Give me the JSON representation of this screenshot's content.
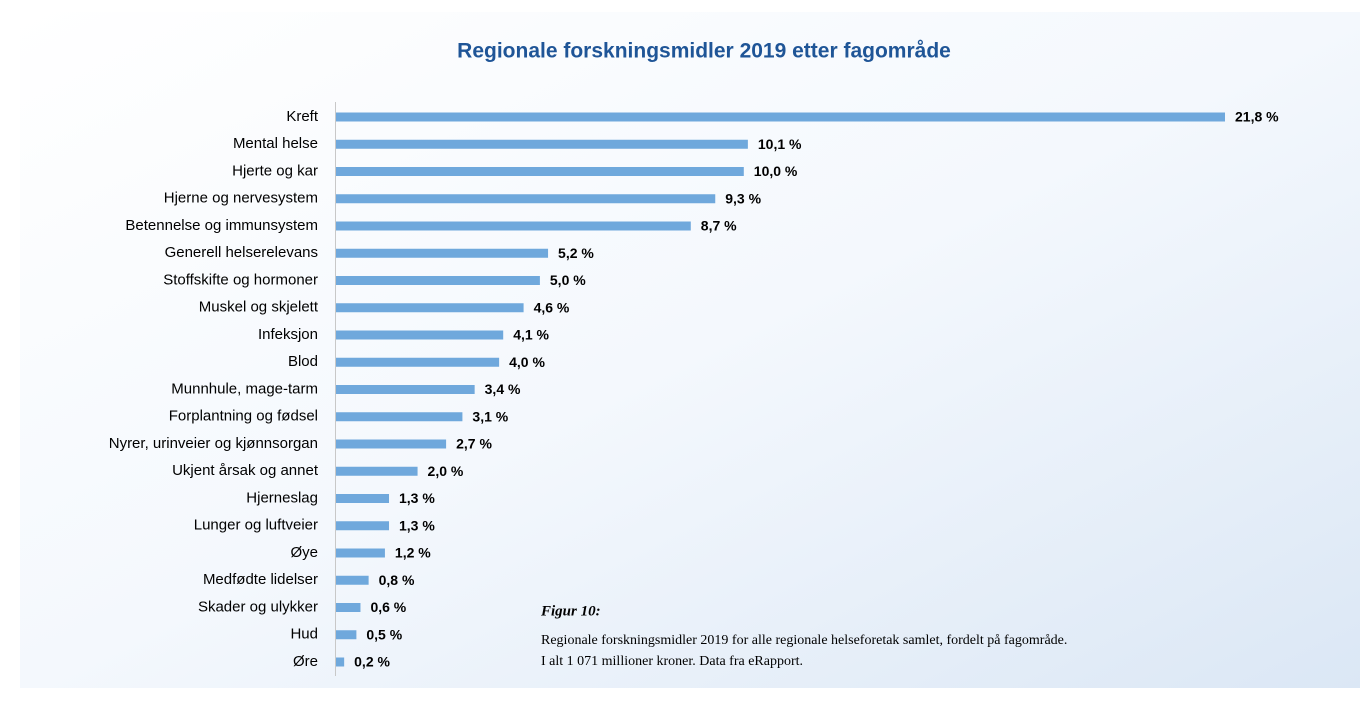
{
  "chart_data": {
    "type": "hbar",
    "title": "Regionale forskningsmidler 2019 etter fagområde",
    "categories": [
      "Kreft",
      "Mental helse",
      "Hjerte og kar",
      "Hjerne og nervesystem",
      "Betennelse og immunsystem",
      "Generell helserelevans",
      "Stoffskifte og hormoner",
      "Muskel og skjelett",
      "Infeksjon",
      "Blod",
      "Munnhule, mage-tarm",
      "Forplantning og fødsel",
      "Nyrer, urinveier og kjønnsorgan",
      "Ukjent årsak og annet",
      "Hjerneslag",
      "Lunger og luftveier",
      "Øye",
      "Medfødte lidelser",
      "Skader og ulykker",
      "Hud",
      "Øre"
    ],
    "values": [
      21.8,
      10.1,
      10.0,
      9.3,
      8.7,
      5.2,
      5.0,
      4.6,
      4.1,
      4.0,
      3.4,
      3.1,
      2.7,
      2.0,
      1.3,
      1.3,
      1.2,
      0.8,
      0.6,
      0.5,
      0.2
    ],
    "value_labels": [
      "21,8 %",
      "10,1 %",
      "10,0 %",
      "9,3 %",
      "8,7 %",
      "5,2 %",
      "5,0 %",
      "4,6 %",
      "4,1 %",
      "4,0 %",
      "3,4 %",
      "3,1 %",
      "2,7 %",
      "2,0 %",
      "1,3 %",
      "1,3 %",
      "1,2 %",
      "0,8 %",
      "0,6 %",
      "0,5 %",
      "0,2 %"
    ],
    "color": "#6fa8dc",
    "caption": {
      "label": "Figur 10:",
      "lines": [
        "Regionale forskningsmidler 2019 for alle regionale helseforetak samlet, fordelt på fagområde.",
        "I alt 1 071 millioner kroner. Data fra eRapport."
      ]
    }
  }
}
